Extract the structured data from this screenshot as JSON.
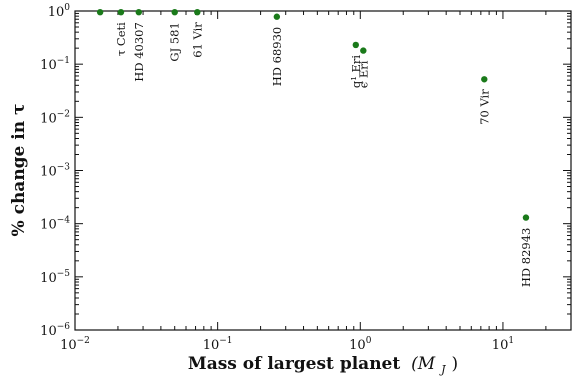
{
  "chart_data": {
    "type": "scatter",
    "xlabel": "Mass of largest planet",
    "xlabel_math": "(M",
    "xlabel_sub": "J",
    "xlabel_close": ")",
    "ylabel": "% change in τ",
    "xscale": "log",
    "yscale": "log",
    "xlim": [
      0.01,
      30
    ],
    "ylim": [
      1e-06,
      1
    ],
    "grid": false,
    "marker_color": "#1a7a1a",
    "x_ticks": [
      {
        "base": "10",
        "exp": "−2",
        "value": 0.01
      },
      {
        "base": "10",
        "exp": "−1",
        "value": 0.1
      },
      {
        "base": "10",
        "exp": "0",
        "value": 1
      },
      {
        "base": "10",
        "exp": "1",
        "value": 10
      }
    ],
    "y_ticks": [
      {
        "base": "10",
        "exp": "0",
        "value": 1
      },
      {
        "base": "10",
        "exp": "−1",
        "value": 0.1
      },
      {
        "base": "10",
        "exp": "−2",
        "value": 0.01
      },
      {
        "base": "10",
        "exp": "−3",
        "value": 0.001
      },
      {
        "base": "10",
        "exp": "−4",
        "value": 0.0001
      },
      {
        "base": "10",
        "exp": "−5",
        "value": 1e-05
      },
      {
        "base": "10",
        "exp": "−6",
        "value": 1e-06
      }
    ],
    "points": [
      {
        "x": 0.015,
        "y": 0.95,
        "label": ""
      },
      {
        "x": 0.021,
        "y": 0.95,
        "label": "τ Ceti"
      },
      {
        "x": 0.028,
        "y": 0.95,
        "label": "HD 40307"
      },
      {
        "x": 0.05,
        "y": 0.95,
        "label": "GJ 581"
      },
      {
        "x": 0.072,
        "y": 0.95,
        "label": "61 Vir"
      },
      {
        "x": 0.26,
        "y": 0.78,
        "label": "HD 68930"
      },
      {
        "x": 0.93,
        "y": 0.23,
        "label": "q¹ Eri"
      },
      {
        "x": 1.05,
        "y": 0.18,
        "label": "ϵ Eri"
      },
      {
        "x": 7.4,
        "y": 0.052,
        "label": "70 Vir"
      },
      {
        "x": 14.5,
        "y": 0.00013,
        "label": "HD 82943"
      }
    ]
  }
}
